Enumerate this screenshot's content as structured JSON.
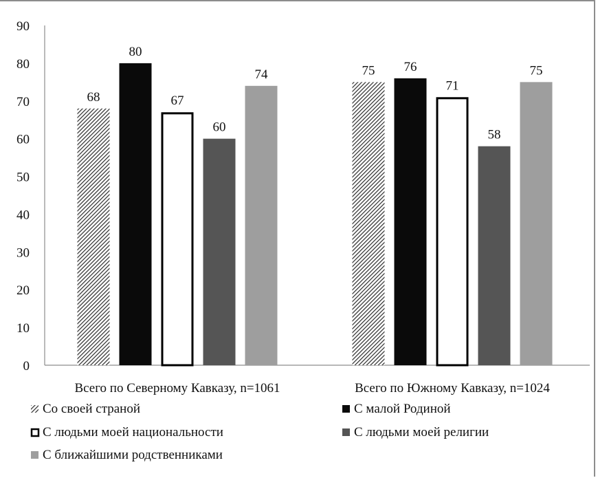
{
  "chart_data": {
    "type": "bar",
    "title": "",
    "xlabel": "",
    "ylabel": "",
    "ylim": [
      0,
      90
    ],
    "yticks": [
      0,
      10,
      20,
      30,
      40,
      50,
      60,
      70,
      80,
      90
    ],
    "grid": false,
    "legend_position": "bottom",
    "categories": [
      "Всего по Северному Кавказу, n=1061",
      "Всего по Южному Кавказу, n=1024"
    ],
    "series": [
      {
        "name": "Со своей страной",
        "values": [
          68,
          75
        ],
        "style": "hatch",
        "color": "#3a3a3a"
      },
      {
        "name": "С малой Родиной",
        "values": [
          80,
          76
        ],
        "style": "solid",
        "color": "#0a0a0a"
      },
      {
        "name": "С людьми моей национальности",
        "values": [
          67,
          71
        ],
        "style": "outline",
        "color": "#000000"
      },
      {
        "name": "С людьми моей религии",
        "values": [
          60,
          58
        ],
        "style": "solid",
        "color": "#555555"
      },
      {
        "name": "С ближайшими родственниками",
        "values": [
          74,
          75
        ],
        "style": "solid",
        "color": "#9e9e9e"
      }
    ]
  }
}
